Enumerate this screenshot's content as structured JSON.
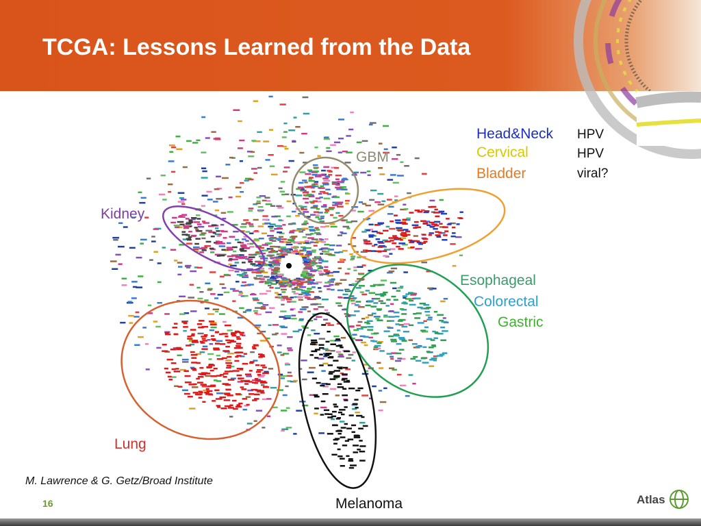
{
  "header": {
    "title": "TCGA:  Lessons Learned from the Data"
  },
  "figure": {
    "clusters": [
      {
        "label": "GBM"
      },
      {
        "label": "Kidney"
      },
      {
        "label": "Lung"
      },
      {
        "label": "Melanoma"
      }
    ],
    "viral_legend": [
      {
        "cancer": "Head&Neck",
        "cause": "HPV"
      },
      {
        "cancer": "Cervical",
        "cause": "HPV"
      },
      {
        "cancer": "Bladder",
        "cause": "viral?"
      }
    ],
    "gi_labels": [
      "Esophageal",
      "Colorectal",
      "Gastric"
    ]
  },
  "footer": {
    "citation": "M. Lawrence & G. Getz/Broad Institute",
    "page": "16",
    "logo": "Atlas"
  }
}
